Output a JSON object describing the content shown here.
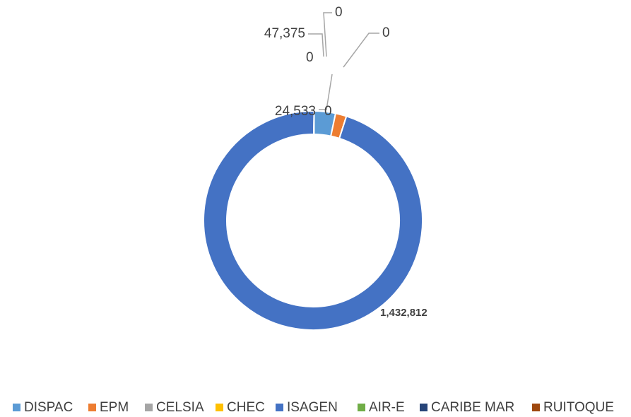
{
  "chart_data": {
    "type": "donut",
    "categories": [
      "DISPAC",
      "EPM",
      "CELSIA",
      "CHEC",
      "ISAGEN",
      "AIR-E",
      "CARIBE MAR",
      "RUITOQUE"
    ],
    "values": [
      47375,
      24533,
      0,
      0,
      1432812,
      0,
      0,
      0
    ],
    "value_labels": [
      "47,375",
      "24,533",
      "0",
      "0",
      "1,432,812",
      "0",
      "0",
      null
    ],
    "colors": [
      "#5b9bd5",
      "#ed7d31",
      "#a5a5a5",
      "#ffc000",
      "#4472c4",
      "#70ad47",
      "#264478",
      "#9e480e"
    ],
    "legend": "bottom"
  }
}
